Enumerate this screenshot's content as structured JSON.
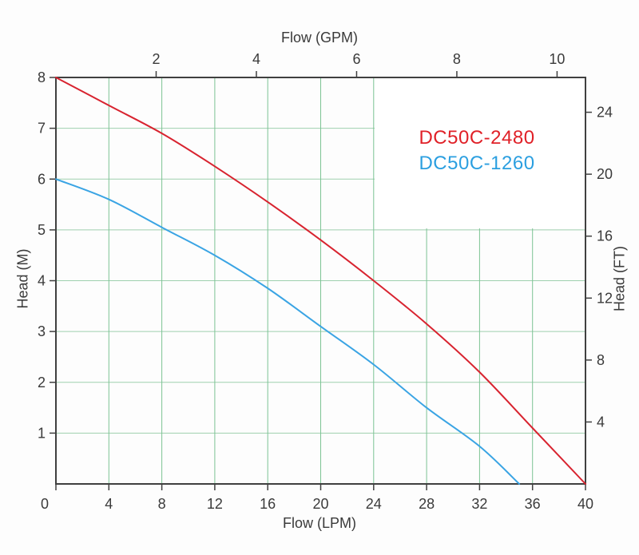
{
  "chart_data": {
    "type": "line",
    "title": "",
    "xlabel": "Flow (LPM)",
    "ylabel": "Head (M)",
    "xlim": [
      0,
      40
    ],
    "ylim": [
      0,
      8
    ],
    "grid": "on",
    "legend_position": "upper-right-inside",
    "axes": {
      "bottom": {
        "label": "Flow (LPM)",
        "ticks": [
          0,
          4,
          8,
          12,
          16,
          20,
          24,
          28,
          32,
          36,
          40
        ]
      },
      "top": {
        "label": "Flow (GPM)",
        "ticks": [
          2,
          4,
          6,
          8,
          10
        ],
        "lpm_per_gpm": 3.7854
      },
      "left": {
        "label": "Head (M)",
        "ticks": [
          1,
          2,
          3,
          4,
          5,
          6,
          7,
          8
        ]
      },
      "right": {
        "label": "Head (FT)",
        "ticks": [
          4,
          8,
          12,
          16,
          20,
          24
        ],
        "m_per_ft": 0.3048
      }
    },
    "series": [
      {
        "name": "DC50C-2480",
        "color": "#d8232f",
        "label_color": "#e02128",
        "points_lpm_m": [
          [
            0,
            8
          ],
          [
            4,
            7.45
          ],
          [
            8,
            6.9
          ],
          [
            12,
            6.25
          ],
          [
            16,
            5.55
          ],
          [
            20,
            4.8
          ],
          [
            24,
            4.0
          ],
          [
            28,
            3.15
          ],
          [
            32,
            2.2
          ],
          [
            36,
            1.1
          ],
          [
            40,
            0
          ]
        ]
      },
      {
        "name": "DC50C-1260",
        "color": "#3aa4e4",
        "label_color": "#2b9fe0",
        "points_lpm_m": [
          [
            0,
            6
          ],
          [
            4,
            5.6
          ],
          [
            8,
            5.05
          ],
          [
            12,
            4.5
          ],
          [
            16,
            3.85
          ],
          [
            20,
            3.1
          ],
          [
            24,
            2.35
          ],
          [
            28,
            1.5
          ],
          [
            32,
            0.74
          ],
          [
            35,
            0
          ]
        ]
      }
    ],
    "colors": {
      "axis_border": "#404040",
      "tick": "#404040",
      "tick_text": "#3a3a3a",
      "grid_vertical": "#7cc394",
      "grid_horizontal": "#9ed0ae",
      "legend_box_fill": "#ffffff"
    }
  }
}
